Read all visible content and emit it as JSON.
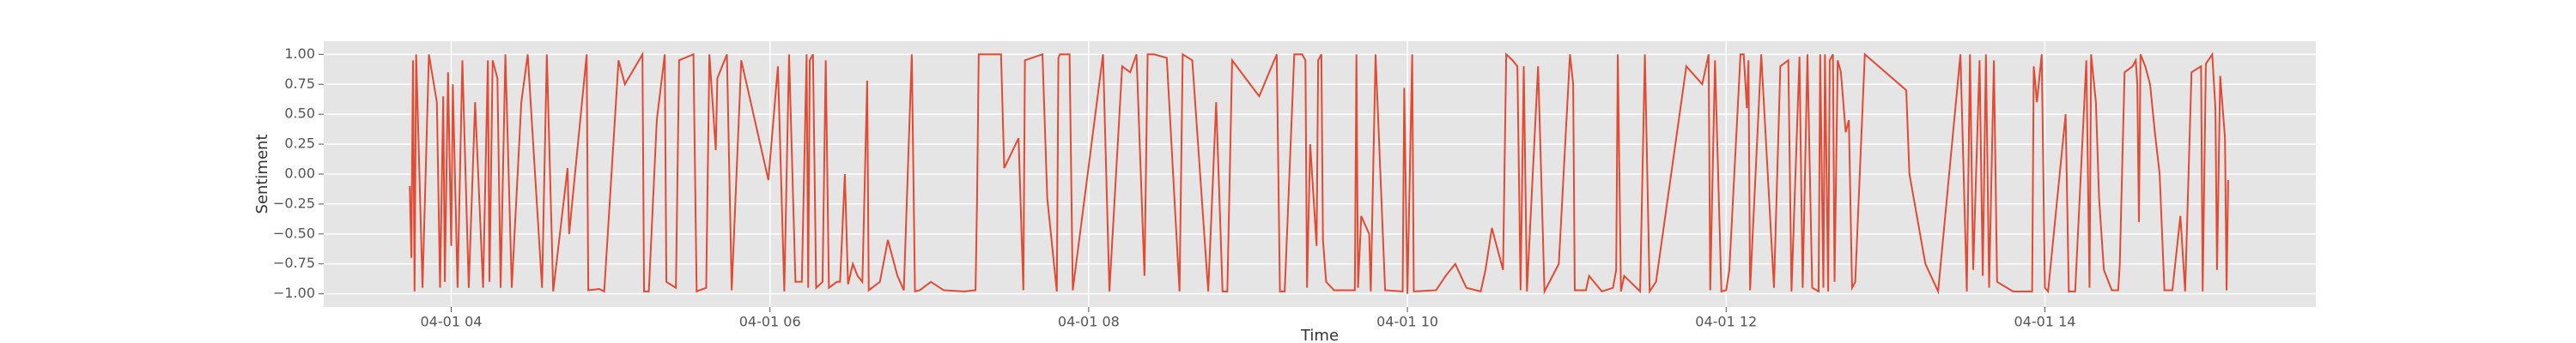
{
  "chart_data": {
    "type": "line",
    "x_label": "Time",
    "y_label": "Sentiment",
    "xlim": [
      3.2,
      15.7
    ],
    "ylim": [
      -1.11,
      1.11
    ],
    "xticks": [
      {
        "value": 4,
        "label": "04-01 04"
      },
      {
        "value": 6,
        "label": "04-01 06"
      },
      {
        "value": 8,
        "label": "04-01 08"
      },
      {
        "value": 10,
        "label": "04-01 10"
      },
      {
        "value": 12,
        "label": "04-01 12"
      },
      {
        "value": 14,
        "label": "04-01 14"
      }
    ],
    "yticks": [
      {
        "value": -1,
        "label": "−1.00"
      },
      {
        "value": -0.75,
        "label": "−0.75"
      },
      {
        "value": -0.5,
        "label": "−0.50"
      },
      {
        "value": -0.25,
        "label": "−0.25"
      },
      {
        "value": 0,
        "label": "0.00"
      },
      {
        "value": 0.25,
        "label": "0.25"
      },
      {
        "value": 0.5,
        "label": "0.50"
      },
      {
        "value": 0.75,
        "label": "0.75"
      },
      {
        "value": 1,
        "label": "1.00"
      }
    ],
    "grid": true,
    "x": [
      3.74,
      3.75,
      3.76,
      3.77,
      3.78,
      3.82,
      3.86,
      3.91,
      3.93,
      3.95,
      3.96,
      3.98,
      4.0,
      4.01,
      4.04,
      4.07,
      4.11,
      4.15,
      4.2,
      4.23,
      4.24,
      4.26,
      4.29,
      4.31,
      4.34,
      4.38,
      4.44,
      4.48,
      4.57,
      4.6,
      4.64,
      4.73,
      4.74,
      4.85,
      4.86,
      4.93,
      4.96,
      5.05,
      5.09,
      5.2,
      5.21,
      5.24,
      5.29,
      5.34,
      5.35,
      5.41,
      5.43,
      5.52,
      5.54,
      5.6,
      5.62,
      5.66,
      5.67,
      5.73,
      5.76,
      5.82,
      5.99,
      6.05,
      6.09,
      6.12,
      6.16,
      6.2,
      6.23,
      6.24,
      6.25,
      6.27,
      6.29,
      6.33,
      6.35,
      6.37,
      6.42,
      6.44,
      6.47,
      6.49,
      6.52,
      6.55,
      6.58,
      6.61,
      6.62,
      6.69,
      6.74,
      6.8,
      6.84,
      6.89,
      6.91,
      6.94,
      7.01,
      7.09,
      7.22,
      7.29,
      7.3,
      7.31,
      7.45,
      7.47,
      7.56,
      7.59,
      7.6,
      7.71,
      7.74,
      7.8,
      7.81,
      7.82,
      7.88,
      7.9,
      8.09,
      8.13,
      8.21,
      8.26,
      8.3,
      8.35,
      8.37,
      8.41,
      8.49,
      8.57,
      8.59,
      8.65,
      8.75,
      8.8,
      8.84,
      8.87,
      8.9,
      9.07,
      9.18,
      9.2,
      9.23,
      9.29,
      9.34,
      9.36,
      9.37,
      9.39,
      9.43,
      9.44,
      9.46,
      9.47,
      9.49,
      9.54,
      9.67,
      9.68,
      9.69,
      9.71,
      9.76,
      9.77,
      9.8,
      9.86,
      9.97,
      9.98,
      10.0,
      10.03,
      10.04,
      10.18,
      10.24,
      10.3,
      10.37,
      10.46,
      10.49,
      10.53,
      10.6,
      10.62,
      10.66,
      10.69,
      10.71,
      10.73,
      10.75,
      10.82,
      10.86,
      10.95,
      11.02,
      11.04,
      11.05,
      11.12,
      11.14,
      11.22,
      11.29,
      11.31,
      11.32,
      11.34,
      11.36,
      11.46,
      11.49,
      11.52,
      11.56,
      11.75,
      11.85,
      11.89,
      11.9,
      11.93,
      11.97,
      12.0,
      12.02,
      12.09,
      12.11,
      12.13,
      12.14,
      12.15,
      12.22,
      12.3,
      12.34,
      12.39,
      12.41,
      12.46,
      12.48,
      12.51,
      12.54,
      12.58,
      12.59,
      12.61,
      12.62,
      12.64,
      12.65,
      12.67,
      12.68,
      12.7,
      12.72,
      12.75,
      12.77,
      12.79,
      12.81,
      12.87,
      13.13,
      13.15,
      13.25,
      13.33,
      13.47,
      13.51,
      13.53,
      13.55,
      13.59,
      13.61,
      13.63,
      13.65,
      13.68,
      13.7,
      13.8,
      13.92,
      13.93,
      13.95,
      13.98,
      14.0,
      14.02,
      14.13,
      14.15,
      14.19,
      14.26,
      14.28,
      14.29,
      14.32,
      14.34,
      14.37,
      14.42,
      14.46,
      14.47,
      14.5,
      14.55,
      14.57,
      14.58,
      14.59,
      14.6,
      14.63,
      14.66,
      14.69,
      14.72,
      14.75,
      14.8,
      14.85,
      14.88,
      14.92,
      14.98,
      14.99,
      15.01,
      15.05,
      15.07,
      15.08,
      15.1,
      15.13,
      15.14,
      15.15
    ],
    "series": [
      {
        "color": "#e24a33",
        "values": [
          -0.1,
          -0.7,
          0.95,
          -0.98,
          1.0,
          -0.95,
          1.0,
          0.6,
          -0.95,
          0.65,
          -0.9,
          0.85,
          -0.6,
          0.75,
          -0.95,
          0.95,
          -0.95,
          0.6,
          -0.95,
          0.95,
          -0.9,
          0.95,
          0.8,
          -0.95,
          1.0,
          -0.95,
          0.6,
          1.0,
          -0.95,
          1.0,
          -0.98,
          0.05,
          -0.5,
          1.0,
          -0.97,
          -0.96,
          -0.98,
          0.95,
          0.75,
          1.0,
          -0.98,
          -0.98,
          0.45,
          1.0,
          -0.9,
          -0.95,
          0.95,
          1.0,
          -0.98,
          -0.95,
          1.0,
          0.2,
          0.8,
          1.0,
          -0.97,
          0.95,
          -0.05,
          0.9,
          -0.98,
          1.0,
          -0.9,
          -0.9,
          1.0,
          -0.95,
          0.95,
          1.0,
          -0.95,
          -0.9,
          0.95,
          -0.95,
          -0.9,
          -0.9,
          0.0,
          -0.92,
          -0.75,
          -0.85,
          -0.9,
          0.78,
          -0.97,
          -0.9,
          -0.55,
          -0.85,
          -0.97,
          1.0,
          -0.98,
          -0.97,
          -0.9,
          -0.97,
          -0.98,
          -0.97,
          -0.18,
          1.0,
          1.0,
          0.05,
          0.3,
          -0.97,
          0.95,
          1.0,
          -0.2,
          -0.98,
          0.97,
          1.0,
          1.0,
          -0.97,
          1.0,
          -0.98,
          0.9,
          0.85,
          1.0,
          -0.85,
          1.0,
          1.0,
          0.97,
          -0.98,
          1.0,
          0.95,
          -0.98,
          0.6,
          -0.98,
          -0.98,
          0.95,
          0.65,
          1.0,
          -0.98,
          -0.98,
          1.0,
          1.0,
          0.95,
          -0.95,
          0.25,
          -0.6,
          0.95,
          1.0,
          -0.55,
          -0.9,
          -0.97,
          -0.97,
          1.0,
          -0.95,
          -0.35,
          -0.5,
          -0.98,
          1.0,
          -0.97,
          -0.98,
          0.72,
          -1.0,
          1.0,
          -0.98,
          -0.97,
          -0.85,
          -0.75,
          -0.95,
          -0.98,
          -0.8,
          -0.45,
          -0.8,
          1.0,
          0.95,
          0.9,
          -0.97,
          0.9,
          -0.98,
          0.9,
          -0.98,
          -0.75,
          1.0,
          0.75,
          -0.97,
          -0.97,
          -0.85,
          -0.98,
          -0.95,
          -0.8,
          1.0,
          -0.98,
          -0.85,
          -0.98,
          1.0,
          -0.98,
          -0.9,
          0.9,
          0.75,
          1.0,
          -0.97,
          0.95,
          -0.98,
          -0.97,
          -0.8,
          1.0,
          1.0,
          0.55,
          0.95,
          -0.97,
          1.0,
          -0.95,
          0.9,
          0.95,
          -0.98,
          0.98,
          -0.95,
          1.0,
          -0.95,
          -0.98,
          1.0,
          -0.95,
          1.0,
          -0.98,
          0.95,
          1.0,
          -0.9,
          0.95,
          0.85,
          0.35,
          0.45,
          -0.95,
          -0.9,
          1.0,
          0.7,
          0.0,
          -0.75,
          -0.98,
          1.0,
          -0.98,
          1.0,
          -0.8,
          0.95,
          -0.85,
          1.0,
          -0.95,
          0.95,
          -0.9,
          -0.98,
          -0.98,
          0.9,
          0.6,
          1.0,
          -0.95,
          -0.98,
          0.5,
          -0.98,
          -0.98,
          0.95,
          -0.95,
          1.0,
          0.6,
          -0.2,
          -0.8,
          -0.97,
          -0.97,
          -0.75,
          0.85,
          0.9,
          0.95,
          0.75,
          -0.4,
          1.0,
          0.9,
          0.75,
          0.35,
          0.0,
          -0.97,
          -0.97,
          -0.35,
          -0.98,
          0.85,
          0.9,
          -0.98,
          0.92,
          1.0,
          0.55,
          -0.8,
          0.82,
          0.3,
          -0.97,
          -0.05
        ]
      }
    ]
  }
}
